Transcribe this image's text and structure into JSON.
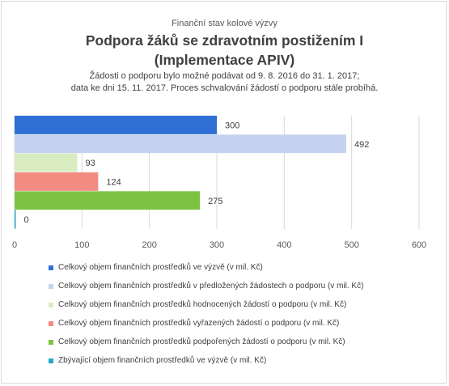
{
  "chart_data": {
    "type": "bar",
    "orientation": "horizontal",
    "supertitle": "Finanční stav kolové výzvy",
    "title_lines": [
      "Podpora žáků se zdravotním postižením I",
      "(Implementace APIV)"
    ],
    "subtitle_lines": [
      "Žádosti o podporu bylo možné  podávat od 9. 8. 2016 do 31. 1. 2017;",
      "data ke dni 15. 11. 2017. Proces schvalování žádostí o podporu stále probíhá."
    ],
    "xlim": [
      0,
      600
    ],
    "ticks": [
      "0",
      "100",
      "200",
      "300",
      "400",
      "500",
      "600"
    ],
    "grid": true,
    "legend_position": "bottom",
    "series": [
      {
        "name": "Celkový objem finančních prostředků ve výzvě (v mil. Kč)",
        "value": 300,
        "label": "300",
        "color": "#2f6fd6"
      },
      {
        "name": "Celkový objem finančních prostředků v předložených žádostech o podporu (v mil. Kč)",
        "value": 492,
        "label": "492",
        "color": "#c5d3f0"
      },
      {
        "name": "Celkový objem finančních prostředků hodnocených žádostí o podporu (v mil. Kč)",
        "value": 93,
        "label": "93",
        "color": "#d9ecc0"
      },
      {
        "name": "Celkový objem finančních prostředků vyřazených žádostí o podporu (v mil. Kč)",
        "value": 124,
        "label": "124",
        "color": "#f28b82"
      },
      {
        "name": "Celkový objem finančních prostředků podpořených žádostí o podporu (v mil. Kč)",
        "value": 275,
        "label": "275",
        "color": "#7dc343"
      },
      {
        "name": "Zbývající objem finančních prostředků ve výzvě (v mil. Kč)",
        "value": 0,
        "label": "0",
        "color": "#2aa7c7"
      }
    ]
  }
}
